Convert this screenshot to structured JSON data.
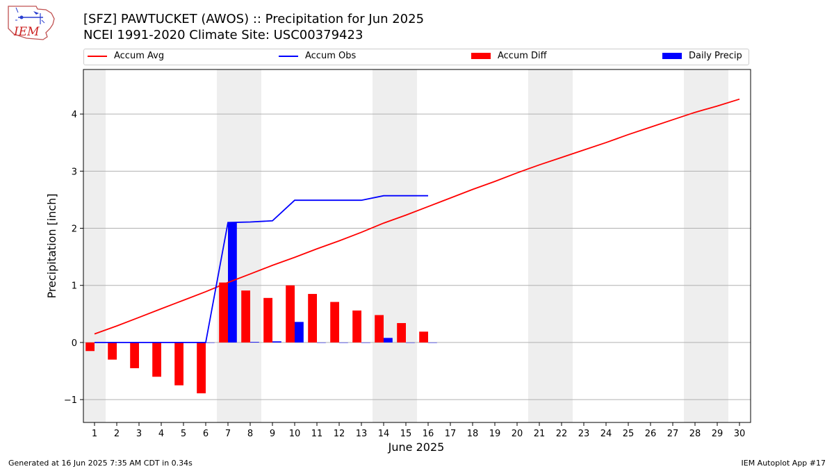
{
  "header": {
    "title": "[SFZ] PAWTUCKET (AWOS) :: Precipitation for Jun 2025",
    "subtitle": "NCEI 1991-2020 Climate Site: USC00379423",
    "logo_text": "IEM"
  },
  "footer": {
    "left": "Generated at 16 Jun 2025 7:35 AM CDT in 0.34s",
    "right": "IEM Autoplot App #17"
  },
  "chart_data": {
    "type": "bar",
    "xlabel": "June 2025",
    "ylabel": "Precipitation [inch]",
    "xlim": [
      0.5,
      30.5
    ],
    "ylim": [
      -1.4,
      4.78
    ],
    "x_ticks": [
      1,
      2,
      3,
      4,
      5,
      6,
      7,
      8,
      9,
      10,
      11,
      12,
      13,
      14,
      15,
      16,
      17,
      18,
      19,
      20,
      21,
      22,
      23,
      24,
      25,
      26,
      27,
      28,
      29,
      30
    ],
    "y_ticks": [
      -1,
      0,
      1,
      2,
      3,
      4
    ],
    "grid": true,
    "legend_position": "top",
    "weekend_shading": [
      [
        0.5,
        1.5
      ],
      [
        6.5,
        8.5
      ],
      [
        13.5,
        15.5
      ],
      [
        20.5,
        22.5
      ],
      [
        27.5,
        29.5
      ]
    ],
    "colors": {
      "avg": "#ff0000",
      "obs": "#0000ff",
      "diff": "#ff0000",
      "daily": "#0000ff",
      "shade": "#eeeeee",
      "grid": "#b0b0b0"
    },
    "series": [
      {
        "name": "Accum Avg",
        "kind": "line",
        "x": [
          1,
          2,
          3,
          4,
          5,
          6,
          7,
          8,
          9,
          10,
          11,
          12,
          13,
          14,
          15,
          16,
          17,
          18,
          19,
          20,
          21,
          22,
          23,
          24,
          25,
          26,
          27,
          28,
          29,
          30
        ],
        "values": [
          0.15,
          0.29,
          0.44,
          0.59,
          0.74,
          0.89,
          1.05,
          1.2,
          1.35,
          1.49,
          1.64,
          1.78,
          1.93,
          2.09,
          2.23,
          2.38,
          2.53,
          2.68,
          2.82,
          2.97,
          3.11,
          3.24,
          3.37,
          3.5,
          3.64,
          3.77,
          3.9,
          4.03,
          4.14,
          4.26
        ]
      },
      {
        "name": "Accum Obs",
        "kind": "line",
        "x": [
          1,
          2,
          3,
          4,
          5,
          6,
          7,
          8,
          9,
          10,
          11,
          12,
          13,
          14,
          15,
          16
        ],
        "values": [
          0,
          0,
          0,
          0,
          0,
          0,
          2.1,
          2.11,
          2.13,
          2.49,
          2.49,
          2.49,
          2.49,
          2.57,
          2.57,
          2.57
        ]
      },
      {
        "name": "Accum Diff",
        "kind": "bar",
        "x": [
          1,
          2,
          3,
          4,
          5,
          6,
          7,
          8,
          9,
          10,
          11,
          12,
          13,
          14,
          15,
          16
        ],
        "values": [
          -0.15,
          -0.3,
          -0.45,
          -0.6,
          -0.75,
          -0.89,
          1.05,
          0.91,
          0.78,
          1.0,
          0.85,
          0.71,
          0.56,
          0.48,
          0.34,
          0.19
        ]
      },
      {
        "name": "Daily Precip",
        "kind": "bar",
        "x": [
          1,
          2,
          3,
          4,
          5,
          6,
          7,
          8,
          9,
          10,
          11,
          12,
          13,
          14,
          15,
          16
        ],
        "values": [
          0,
          0,
          0,
          0,
          0,
          0,
          2.1,
          0.01,
          0.02,
          0.36,
          0,
          0,
          0,
          0.08,
          0,
          0
        ]
      }
    ]
  }
}
